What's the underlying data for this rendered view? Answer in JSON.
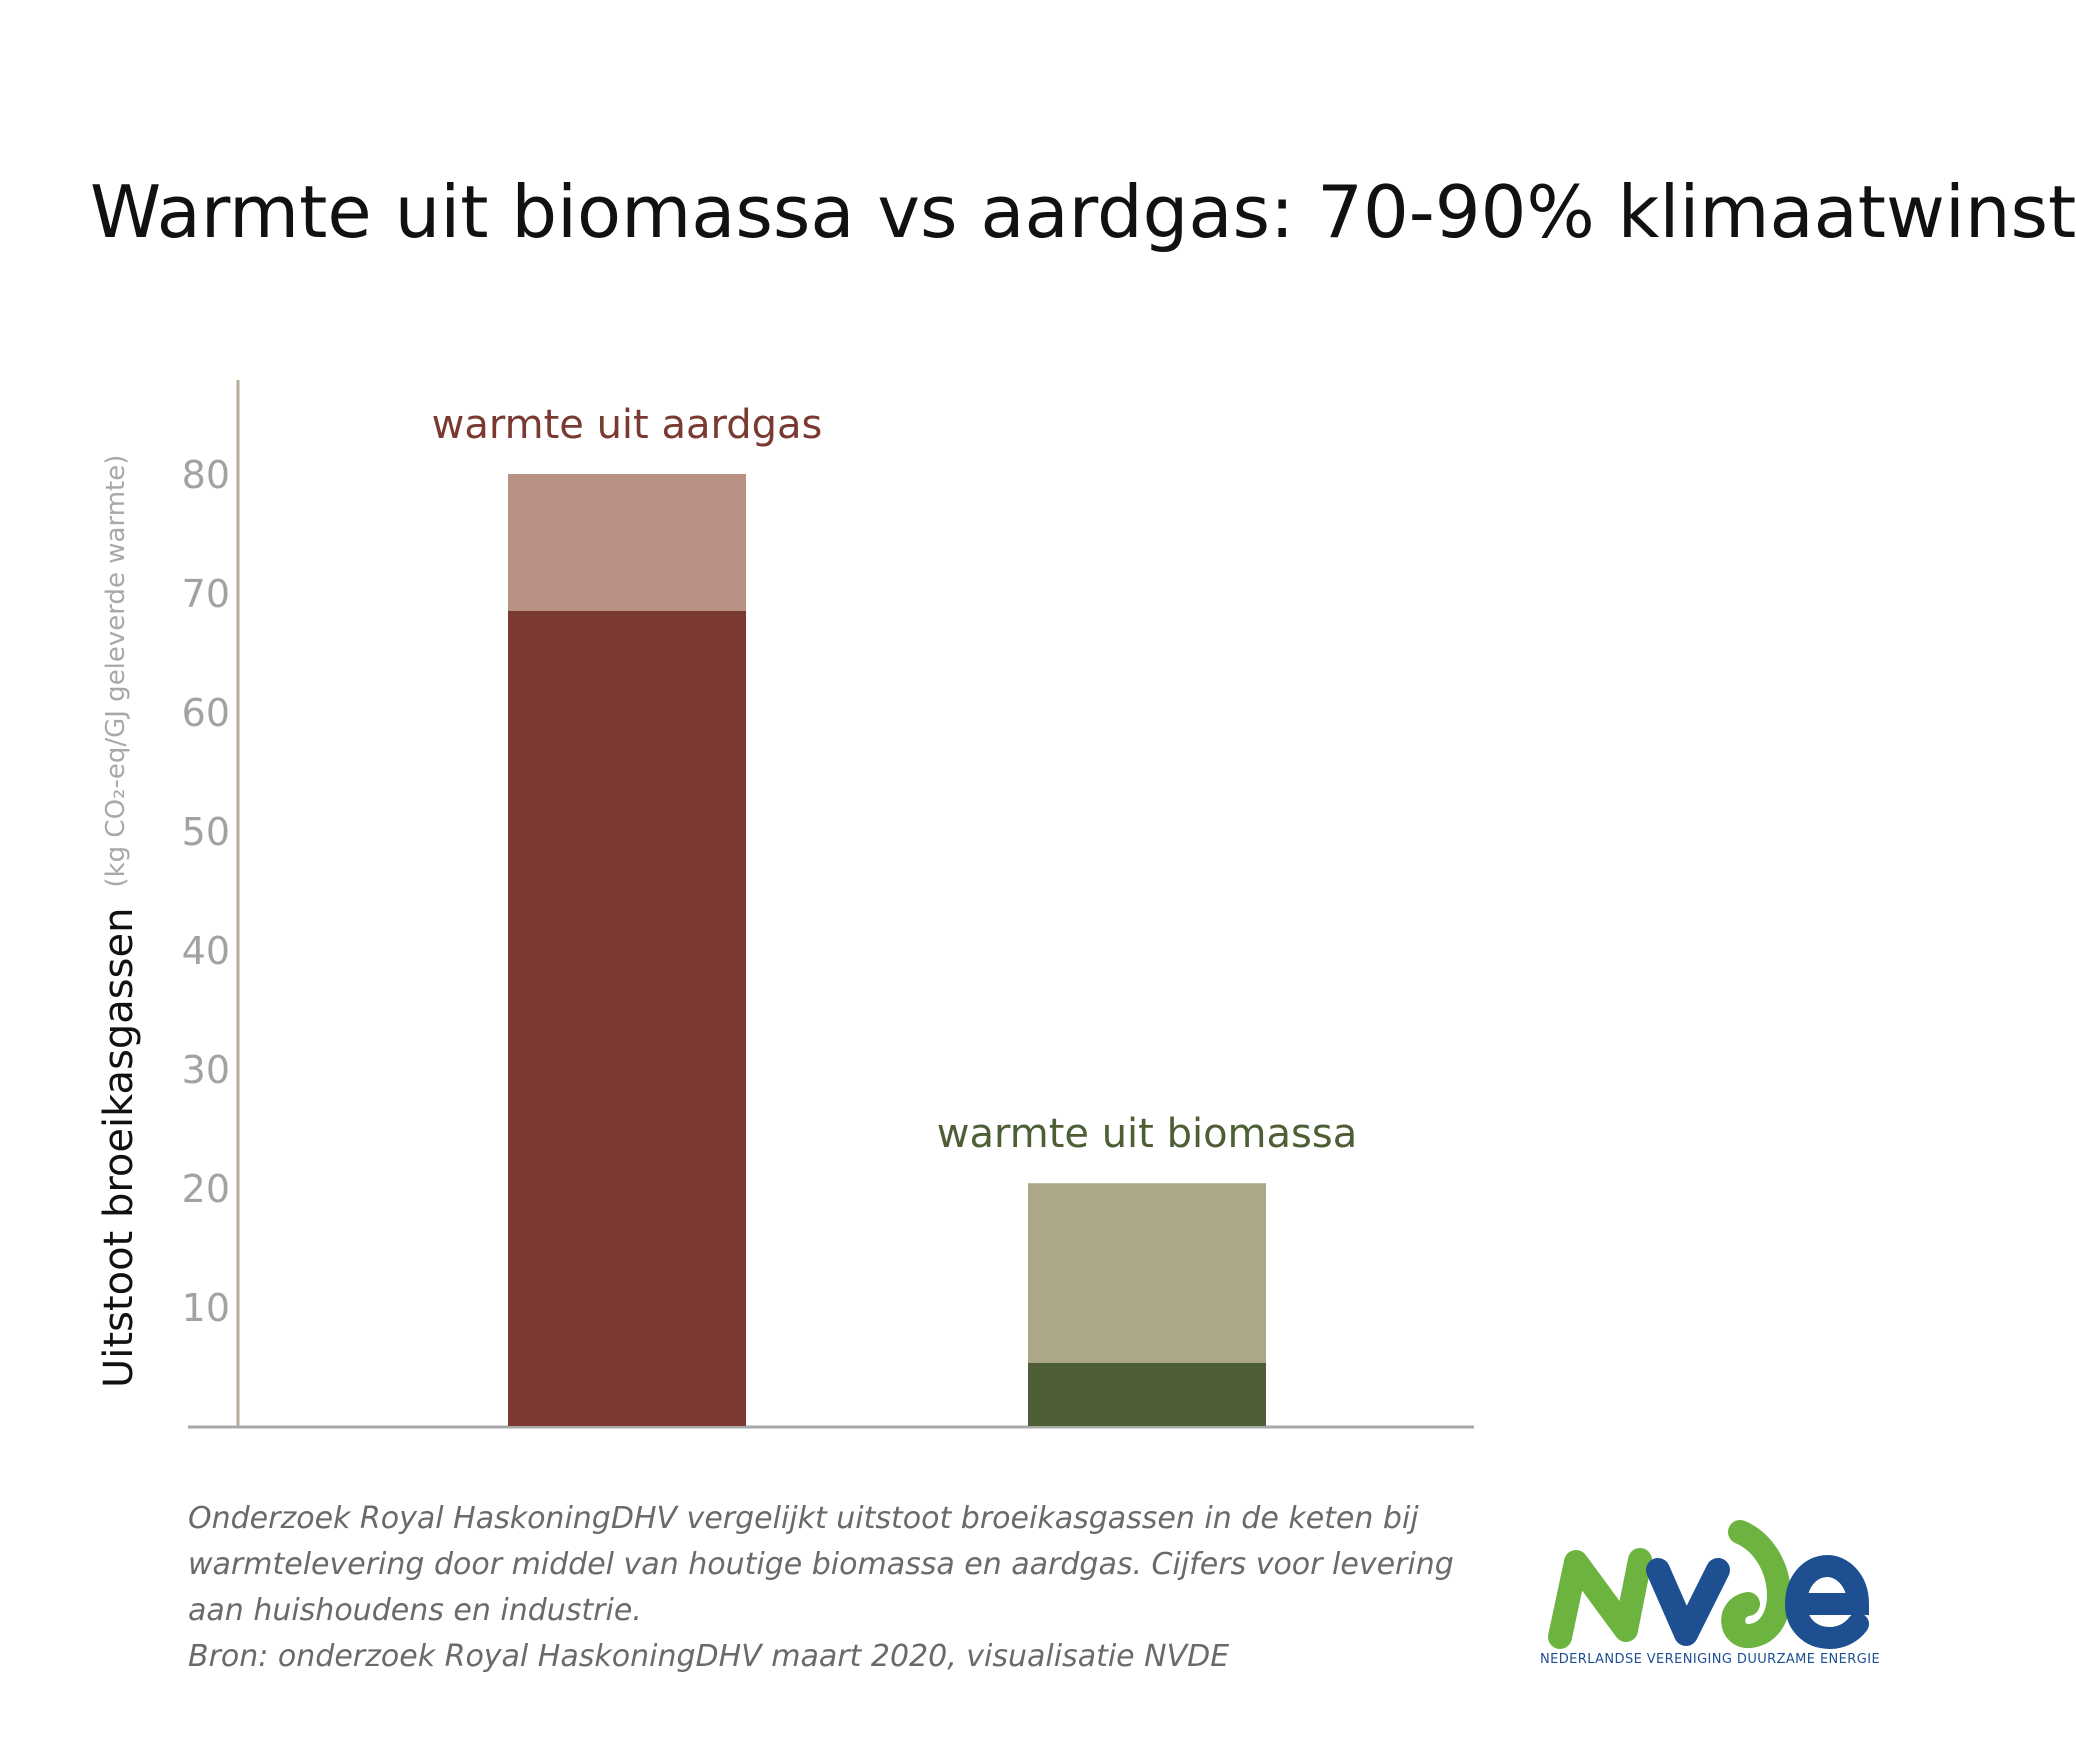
{
  "title": "Warmte uit biomassa vs aardgas: 70-90% klimaatwinst",
  "chart_data": {
    "type": "bar",
    "stacked": true,
    "title": "Warmte uit biomassa vs aardgas: 70-90% klimaatwinst",
    "ylabel": "Uitstoot broeikasgassen",
    "ylabel_unit": "(kg CO₂-eq/GJ geleverde warmte)",
    "xlabel": "",
    "ylim": [
      0,
      88
    ],
    "yticks": [
      10,
      20,
      30,
      40,
      50,
      60,
      70,
      80
    ],
    "grid": false,
    "categories": [
      "warmte uit aardgas",
      "warmte uit biomassa"
    ],
    "bars": [
      {
        "label": "warmte uit aardgas",
        "low": 68.5,
        "high": 80,
        "color_dark": "#7a3a31",
        "color_light": "#b99285",
        "label_color": "#7a3a31"
      },
      {
        "label": "warmte uit biomassa",
        "low": 5.3,
        "high": 20.4,
        "color_dark": "#4e5e35",
        "color_light": "#aba788",
        "label_color": "#4e5e35"
      }
    ]
  },
  "footnote": {
    "lines": [
      "Onderzoek Royal HaskoningDHV vergelijkt uitstoot broeikasgassen in de keten bij",
      "warmtelevering door middel van houtige biomassa en aardgas. Cijfers voor levering",
      "aan huishoudens en industrie.",
      "Bron: onderzoek Royal HaskoningDHV maart 2020, visualisatie NVDE"
    ]
  },
  "logo": {
    "name": "NVDE",
    "subtitle": "NEDERLANDSE VERENIGING DUURZAME ENERGIE",
    "green": "#6cb33f",
    "blue": "#1d4f91"
  }
}
